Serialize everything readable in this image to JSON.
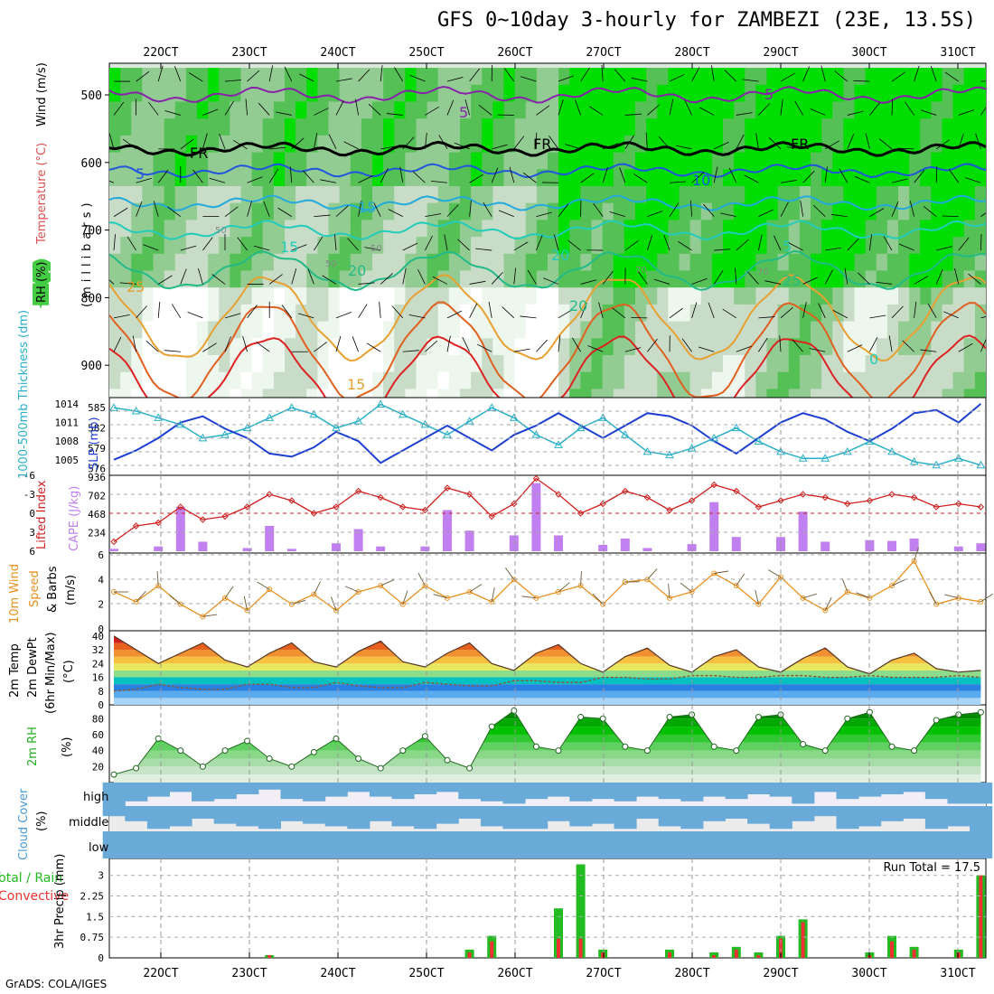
{
  "title": "GFS 0~10day 3-hourly for ZAMBEZI (23E, 13.5S)",
  "footer": "GrADS: COLA/IGES",
  "time_axis": {
    "labels": [
      "22OCT",
      "23OCT",
      "24OCT",
      "25OCT",
      "26OCT",
      "27OCT",
      "28OCT",
      "29OCT",
      "30OCT",
      "31OCT"
    ]
  },
  "panels": {
    "profile": {
      "ylabels": [
        "RH (%)",
        "Temperature (°C)",
        "Wind (m/s)"
      ],
      "yunit": "(millibars)",
      "yticks": [
        "500",
        "600",
        "700",
        "800",
        "900"
      ],
      "contour_labels": [
        "FR",
        "FR",
        "FR",
        "5",
        "5",
        "5",
        "10",
        "15",
        "15",
        "20",
        "20",
        "25",
        "25",
        "20",
        "15",
        "5",
        "0",
        "50",
        "50",
        "50",
        "70",
        "70"
      ]
    },
    "slp": {
      "left_label": "1000-500mb Thickness (dm)",
      "right_label": "SLP (mb)",
      "left_ticks": [
        "585",
        "582",
        "579",
        "576"
      ],
      "right_ticks": [
        "1014",
        "1011",
        "1008",
        "1005"
      ]
    },
    "cape": {
      "left_label": "Lifted Index",
      "right_label": "CAPE (J/kg)",
      "left_ticks": [
        "-6",
        "-3",
        "0",
        "3",
        "6"
      ],
      "right_ticks": [
        "936",
        "702",
        "468",
        "234"
      ]
    },
    "wind": {
      "label_lines": [
        "10m Wind",
        "Speed",
        "& Barbs",
        "(m/s)"
      ],
      "ticks": [
        "6",
        "4",
        "2",
        "0"
      ]
    },
    "temp": {
      "label_lines": [
        "2m Temp",
        "2m DewPt",
        "(6hr Min/Max)",
        "(°C)"
      ],
      "ticks": [
        "40",
        "32",
        "24",
        "16",
        "8",
        "0"
      ]
    },
    "rh": {
      "label": "2m RH",
      "unit": "(%)",
      "ticks": [
        "80",
        "60",
        "40",
        "20"
      ]
    },
    "cloud": {
      "label": "Cloud Cover",
      "unit": "(%)",
      "levels": [
        "high",
        "middle",
        "low"
      ]
    },
    "precip": {
      "left_label_1": "Total / Rain",
      "left_label_2": "Convective",
      "ylabel": "3hr Precip (mm)",
      "ticks": [
        "3",
        "2.25",
        "1.5",
        "0.75",
        "0"
      ],
      "run_total": "Run Total = 17.5"
    }
  },
  "colors": {
    "thickness": "#2ab0c8",
    "slp": "#1e3fd0",
    "lifted": "#d02020",
    "cape": "#c080f0",
    "wind": "#e89020",
    "rh": "#20b020",
    "cloud": "#6aaad8",
    "precip_total": "#22bb22",
    "precip_conv": "#ee3333"
  },
  "chart_data": [
    {
      "type": "line",
      "name": "1000-500mb Thickness / SLP",
      "x": [
        "21OCT18",
        "22OCT00",
        "22OCT06",
        "22OCT12",
        "22OCT18",
        "23OCT00",
        "23OCT06",
        "23OCT12",
        "23OCT18",
        "24OCT00",
        "24OCT06",
        "24OCT12",
        "24OCT18",
        "25OCT00",
        "25OCT06",
        "25OCT12",
        "25OCT18",
        "26OCT00",
        "26OCT06",
        "26OCT12",
        "26OCT18",
        "27OCT00",
        "27OCT06",
        "27OCT12",
        "27OCT18",
        "28OCT00",
        "28OCT06",
        "28OCT12",
        "28OCT18",
        "29OCT00",
        "29OCT06",
        "29OCT12",
        "29OCT18",
        "30OCT00",
        "30OCT06",
        "30OCT12",
        "30OCT18",
        "31OCT00",
        "31OCT06",
        "31OCT12"
      ],
      "series": [
        {
          "name": "1000-500mb Thickness (dm)",
          "values": [
            585.0,
            584.5,
            583.5,
            582.5,
            580.5,
            581.0,
            582.0,
            583.5,
            585.0,
            584.0,
            582.0,
            583.0,
            585.5,
            584.0,
            582.5,
            581.0,
            583.0,
            585.0,
            583.5,
            581.0,
            579.5,
            582.0,
            583.5,
            581.0,
            578.5,
            578.0,
            579.0,
            580.5,
            582.0,
            580.0,
            578.5,
            577.5,
            577.5,
            578.5,
            580.0,
            578.5,
            577.0,
            576.5,
            577.5,
            576.5
          ]
        },
        {
          "name": "SLP (mb)",
          "values": [
            1005.0,
            1006.5,
            1008.5,
            1011.0,
            1012.0,
            1010.0,
            1008.5,
            1006.0,
            1005.5,
            1007.0,
            1009.5,
            1008.0,
            1004.5,
            1006.5,
            1008.5,
            1010.5,
            1008.5,
            1006.5,
            1009.0,
            1010.5,
            1012.5,
            1010.5,
            1008.5,
            1010.5,
            1012.5,
            1012.0,
            1010.5,
            1008.0,
            1006.0,
            1008.5,
            1011.0,
            1012.5,
            1011.5,
            1009.5,
            1008.0,
            1010.0,
            1012.5,
            1013.0,
            1011.0,
            1014.0
          ]
        }
      ],
      "ylim_left": [
        575,
        586.5
      ],
      "ylim_right": [
        1002.5,
        1015
      ]
    },
    {
      "type": "bar",
      "name": "CAPE / Lifted Index",
      "x": [
        "21OCT18",
        "22OCT00",
        "22OCT06",
        "22OCT12",
        "22OCT18",
        "23OCT00",
        "23OCT06",
        "23OCT12",
        "23OCT18",
        "24OCT00",
        "24OCT06",
        "24OCT12",
        "24OCT18",
        "25OCT00",
        "25OCT06",
        "25OCT12",
        "25OCT18",
        "26OCT00",
        "26OCT06",
        "26OCT12",
        "26OCT18",
        "27OCT00",
        "27OCT06",
        "27OCT12",
        "27OCT18",
        "28OCT00",
        "28OCT06",
        "28OCT12",
        "28OCT18",
        "29OCT00",
        "29OCT06",
        "29OCT12",
        "29OCT18",
        "30OCT00",
        "30OCT06",
        "30OCT12",
        "30OCT18",
        "31OCT00",
        "31OCT06",
        "31OCT12"
      ],
      "series": [
        {
          "name": "CAPE (J/kg)",
          "values": [
            30,
            0,
            60,
            560,
            120,
            0,
            40,
            320,
            30,
            0,
            100,
            280,
            60,
            0,
            60,
            520,
            260,
            0,
            200,
            860,
            200,
            0,
            80,
            160,
            40,
            0,
            90,
            620,
            180,
            0,
            180,
            500,
            120,
            0,
            140,
            130,
            160,
            0,
            60,
            100
          ]
        },
        {
          "name": "Lifted Index",
          "values": [
            4.5,
            2.0,
            1.5,
            -1.0,
            1.0,
            0.5,
            -1.0,
            -3.0,
            -2.0,
            0.0,
            -1.0,
            -3.5,
            -2.5,
            -1.0,
            -0.5,
            -4.0,
            -3.0,
            0.5,
            -1.5,
            -5.5,
            -3.0,
            0.0,
            -1.5,
            -3.5,
            -2.5,
            -0.5,
            -2.0,
            -4.5,
            -3.5,
            -1.0,
            -2.0,
            -3.0,
            -2.5,
            -1.5,
            -2.0,
            -3.0,
            -2.5,
            -1.0,
            -1.5,
            -1.0
          ]
        }
      ],
      "ylim_left": [
        6,
        -6
      ],
      "ylim_right": [
        0,
        936
      ]
    },
    {
      "type": "line",
      "name": "10m Wind Speed",
      "x": [
        "21OCT18",
        "22OCT00",
        "22OCT06",
        "22OCT12",
        "22OCT18",
        "23OCT00",
        "23OCT06",
        "23OCT12",
        "23OCT18",
        "24OCT00",
        "24OCT06",
        "24OCT12",
        "24OCT18",
        "25OCT00",
        "25OCT06",
        "25OCT12",
        "25OCT18",
        "26OCT00",
        "26OCT06",
        "26OCT12",
        "26OCT18",
        "27OCT00",
        "27OCT06",
        "27OCT12",
        "27OCT18",
        "28OCT00",
        "28OCT06",
        "28OCT12",
        "28OCT18",
        "29OCT00",
        "29OCT06",
        "29OCT12",
        "29OCT18",
        "30OCT00",
        "30OCT06",
        "30OCT12",
        "30OCT18",
        "31OCT00",
        "31OCT06",
        "31OCT12"
      ],
      "series": [
        {
          "name": "10m Wind Speed (m/s)",
          "values": [
            3.0,
            2.2,
            3.5,
            2.0,
            1.0,
            2.5,
            1.5,
            3.2,
            2.0,
            2.8,
            1.5,
            3.0,
            3.5,
            2.0,
            3.5,
            2.5,
            3.0,
            2.2,
            4.0,
            2.5,
            3.0,
            3.5,
            2.0,
            3.8,
            4.0,
            2.5,
            3.0,
            4.5,
            3.5,
            2.0,
            4.2,
            2.5,
            1.5,
            3.0,
            2.5,
            3.5,
            5.5,
            2.0,
            2.5,
            2.2
          ]
        }
      ],
      "ylim": [
        0,
        6
      ]
    },
    {
      "type": "area",
      "name": "2m Temp / DewPt",
      "x": [
        "21OCT18",
        "22OCT00",
        "22OCT06",
        "22OCT12",
        "22OCT18",
        "23OCT00",
        "23OCT06",
        "23OCT12",
        "23OCT18",
        "24OCT00",
        "24OCT06",
        "24OCT12",
        "24OCT18",
        "25OCT00",
        "25OCT06",
        "25OCT12",
        "25OCT18",
        "26OCT00",
        "26OCT06",
        "26OCT12",
        "26OCT18",
        "27OCT00",
        "27OCT06",
        "27OCT12",
        "27OCT18",
        "28OCT00",
        "28OCT06",
        "28OCT12",
        "28OCT18",
        "29OCT00",
        "29OCT06",
        "29OCT12",
        "29OCT18",
        "30OCT00",
        "30OCT06",
        "30OCT12",
        "30OCT18",
        "31OCT00",
        "31OCT06",
        "31OCT12"
      ],
      "series": [
        {
          "name": "2m Temp (°C)",
          "values": [
            40,
            32,
            24,
            30,
            36,
            26,
            22,
            30,
            36,
            25,
            22,
            31,
            37,
            25,
            22,
            30,
            36,
            24,
            20,
            30,
            35,
            24,
            19,
            28,
            33,
            23,
            19,
            28,
            32,
            22,
            19,
            27,
            33,
            22,
            18,
            26,
            30,
            21,
            19,
            20
          ]
        },
        {
          "name": "2m DewPt (°C)",
          "values": [
            8,
            9,
            12,
            10,
            9,
            9,
            12,
            12,
            10,
            10,
            13,
            11,
            10,
            10,
            13,
            12,
            11,
            11,
            14,
            14,
            13,
            13,
            16,
            16,
            15,
            15,
            17,
            17,
            16,
            16,
            17,
            17,
            16,
            16,
            17,
            16,
            16,
            16,
            17,
            16
          ]
        }
      ],
      "ylim": [
        0,
        42
      ]
    },
    {
      "type": "area",
      "name": "2m RH",
      "x": [
        "21OCT18",
        "22OCT00",
        "22OCT06",
        "22OCT12",
        "22OCT18",
        "23OCT00",
        "23OCT06",
        "23OCT12",
        "23OCT18",
        "24OCT00",
        "24OCT06",
        "24OCT12",
        "24OCT18",
        "25OCT00",
        "25OCT06",
        "25OCT12",
        "25OCT18",
        "26OCT00",
        "26OCT06",
        "26OCT12",
        "26OCT18",
        "27OCT00",
        "27OCT06",
        "27OCT12",
        "27OCT18",
        "28OCT00",
        "28OCT06",
        "28OCT12",
        "28OCT18",
        "29OCT00",
        "29OCT06",
        "29OCT12",
        "29OCT18",
        "30OCT00",
        "30OCT06",
        "30OCT12",
        "30OCT18",
        "31OCT00",
        "31OCT06",
        "31OCT12"
      ],
      "series": [
        {
          "name": "2m RH (%)",
          "values": [
            10,
            18,
            55,
            40,
            20,
            40,
            52,
            30,
            20,
            38,
            55,
            30,
            18,
            40,
            58,
            28,
            18,
            70,
            90,
            45,
            40,
            82,
            80,
            45,
            40,
            82,
            85,
            45,
            40,
            82,
            85,
            48,
            40,
            80,
            88,
            45,
            40,
            78,
            85,
            88
          ]
        }
      ],
      "ylim": [
        0,
        95
      ]
    },
    {
      "type": "bar",
      "name": "Cloud Cover",
      "levels": [
        "high",
        "middle",
        "low"
      ],
      "series": [
        {
          "name": "high (%)",
          "values": [
            100,
            80,
            60,
            40,
            80,
            70,
            50,
            30,
            70,
            80,
            60,
            40,
            60,
            70,
            50,
            40,
            70,
            80,
            90,
            70,
            60,
            80,
            70,
            80,
            60,
            70,
            80,
            60,
            70,
            50,
            60,
            90,
            40,
            70,
            60,
            50,
            40,
            70,
            90,
            90
          ]
        },
        {
          "name": "middle (%)",
          "values": [
            40,
            60,
            90,
            80,
            50,
            70,
            80,
            90,
            60,
            70,
            80,
            90,
            60,
            80,
            90,
            70,
            50,
            80,
            90,
            90,
            60,
            80,
            70,
            90,
            50,
            80,
            90,
            60,
            50,
            70,
            90,
            60,
            40,
            90,
            80,
            60,
            50,
            90,
            80,
            100
          ]
        },
        {
          "name": "low (%)",
          "values": [
            100,
            100,
            100,
            100,
            100,
            100,
            100,
            100,
            100,
            100,
            100,
            100,
            100,
            100,
            100,
            100,
            100,
            100,
            100,
            100,
            100,
            100,
            100,
            100,
            100,
            100,
            100,
            100,
            100,
            100,
            100,
            100,
            100,
            100,
            100,
            100,
            100,
            100,
            100,
            100
          ]
        }
      ]
    },
    {
      "type": "bar",
      "name": "3hr Precip",
      "x": [
        "21OCT18",
        "22OCT00",
        "22OCT06",
        "22OCT12",
        "22OCT18",
        "23OCT00",
        "23OCT06",
        "23OCT12",
        "23OCT18",
        "24OCT00",
        "24OCT06",
        "24OCT12",
        "24OCT18",
        "25OCT00",
        "25OCT06",
        "25OCT12",
        "25OCT18",
        "26OCT00",
        "26OCT06",
        "26OCT12",
        "26OCT18",
        "27OCT00",
        "27OCT06",
        "27OCT12",
        "27OCT18",
        "28OCT00",
        "28OCT06",
        "28OCT12",
        "28OCT18",
        "29OCT00",
        "29OCT06",
        "29OCT12",
        "29OCT18",
        "30OCT00",
        "30OCT06",
        "30OCT12",
        "30OCT18",
        "31OCT00",
        "31OCT06",
        "31OCT12"
      ],
      "series": [
        {
          "name": "Total / Rain (mm)",
          "values": [
            0,
            0,
            0,
            0,
            0,
            0,
            0,
            0.1,
            0,
            0,
            0,
            0,
            0,
            0,
            0,
            0,
            0.3,
            0.8,
            0,
            0,
            1.8,
            3.4,
            0.3,
            0,
            0,
            0.3,
            0,
            0.2,
            0.4,
            0.2,
            0.8,
            1.4,
            0,
            0,
            0.2,
            0.8,
            0.4,
            0,
            0.3,
            3.0
          ]
        },
        {
          "name": "Convective (mm)",
          "values": [
            0,
            0,
            0,
            0,
            0,
            0,
            0,
            0.1,
            0,
            0,
            0,
            0,
            0,
            0,
            0,
            0,
            0.2,
            0.6,
            0,
            0,
            0.7,
            0.7,
            0.2,
            0,
            0,
            0.2,
            0,
            0.1,
            0.3,
            0.1,
            0.7,
            1.3,
            0,
            0,
            0.1,
            0.6,
            0.3,
            0,
            0.2,
            3.0
          ]
        }
      ],
      "ylim": [
        0,
        3.45
      ]
    }
  ]
}
